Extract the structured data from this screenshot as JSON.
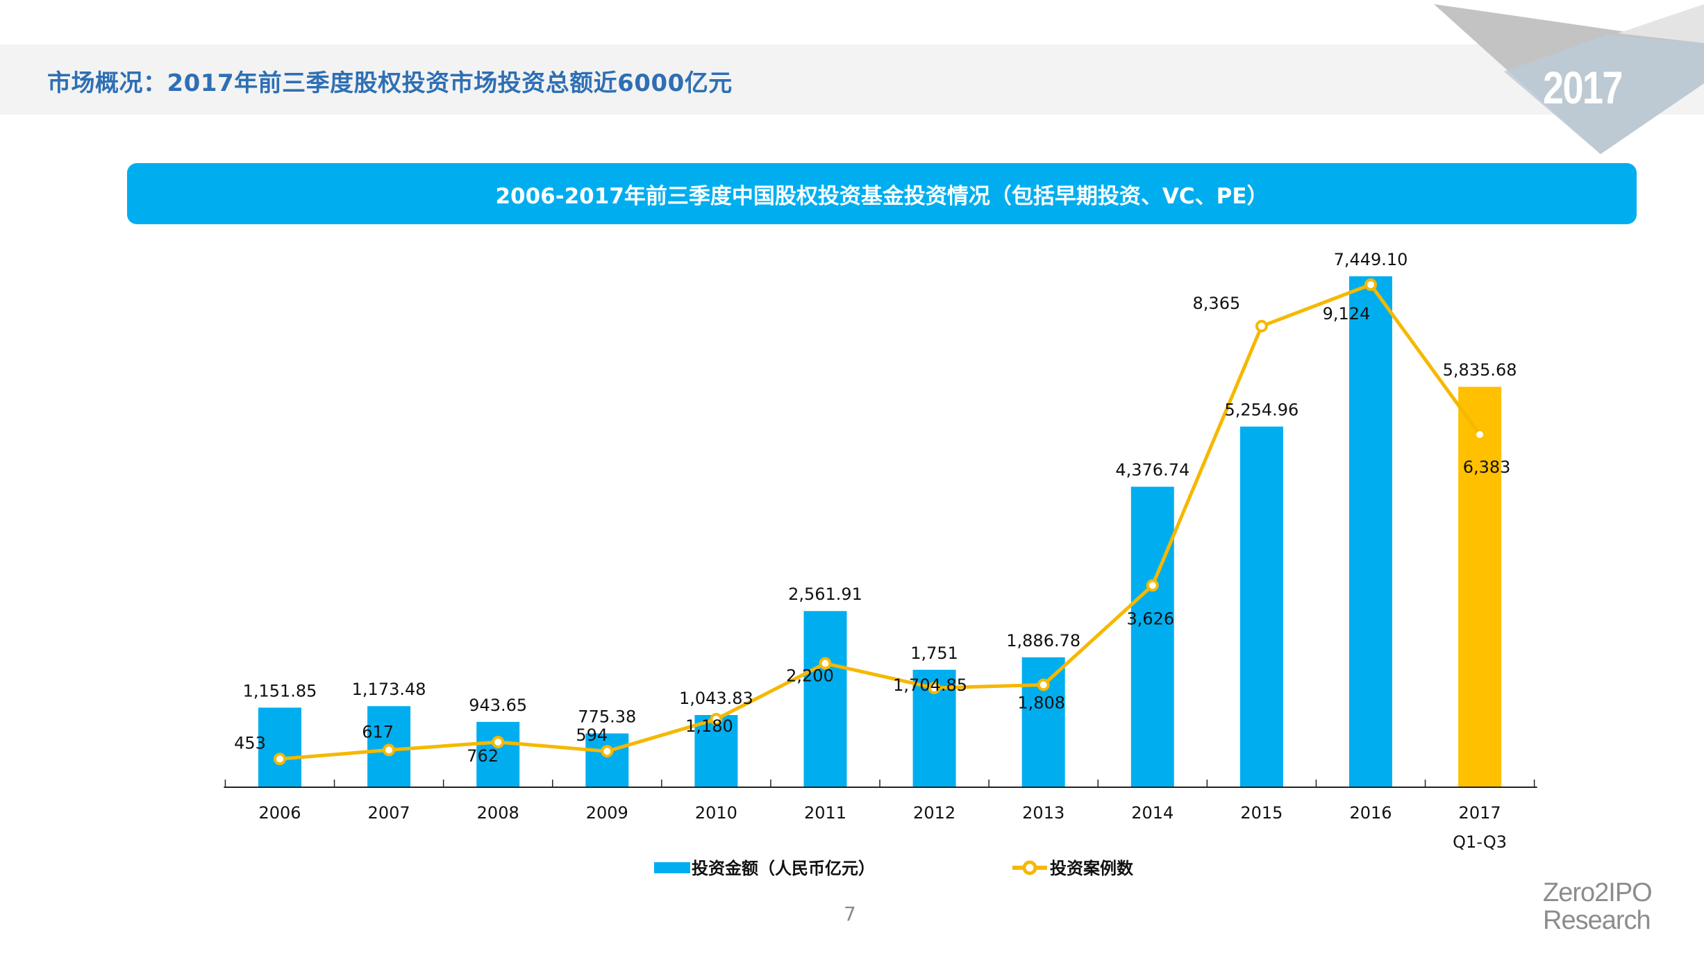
{
  "page": {
    "title": "市场概况：2017年前三季度股权投资市场投资总额近6000亿元",
    "year_badge": "2017",
    "page_number": "7",
    "brand_line1": "Zero2IPO",
    "brand_line2": "Research"
  },
  "colors": {
    "bar": "#00aeef",
    "bar_highlight": "#ffc000",
    "line": "#f5b800",
    "title": "#2e6fb4",
    "banner": "#00aeef"
  },
  "chart_data": {
    "type": "bar",
    "combo": "bar+line",
    "title": "2006-2017年前三季度中国股权投资基金投资情况（包括早期投资、VC、PE）",
    "xlabel": "",
    "ylabel": "",
    "grid": false,
    "legend_position": "bottom",
    "categories": [
      {
        "line1": "2006",
        "line2": ""
      },
      {
        "line1": "2007",
        "line2": ""
      },
      {
        "line1": "2008",
        "line2": ""
      },
      {
        "line1": "2009",
        "line2": ""
      },
      {
        "line1": "2010",
        "line2": ""
      },
      {
        "line1": "2011",
        "line2": ""
      },
      {
        "line1": "2012",
        "line2": ""
      },
      {
        "line1": "2013",
        "line2": ""
      },
      {
        "line1": "2014",
        "line2": ""
      },
      {
        "line1": "2015",
        "line2": ""
      },
      {
        "line1": "2016",
        "line2": ""
      },
      {
        "line1": "2017",
        "line2": "Q1-Q3"
      }
    ],
    "series": [
      {
        "name": "投资金额（人民币亿元）",
        "type": "bar",
        "values": [
          1151.85,
          1173.48,
          943.65,
          775.38,
          1043.83,
          2561.91,
          1704.85,
          1886.78,
          4376.74,
          5254.96,
          7449.1,
          5835.68
        ],
        "labels": [
          "1,151.85",
          "1,173.48",
          "943.65",
          "775.38",
          "1,043.83",
          "2,561.91",
          "1,704.85",
          "1,886.78",
          "4,376.74",
          "5,254.96",
          "7,449.10",
          "5,835.68"
        ],
        "highlight_index": 11
      },
      {
        "name": "投资案例数",
        "type": "line",
        "values": [
          453,
          617,
          762,
          594,
          1180,
          2200,
          1751,
          1808,
          3626,
          8365,
          9124,
          6383
        ],
        "labels": [
          "453",
          "617",
          "762",
          "594",
          "1,180",
          "2,200",
          "1,751",
          "1,808",
          "3,626",
          "8,365",
          "9,124",
          "6,383"
        ]
      }
    ],
    "ylim_bar": [
      0,
      7449.1
    ],
    "ylim_line": [
      0,
      9124
    ]
  }
}
